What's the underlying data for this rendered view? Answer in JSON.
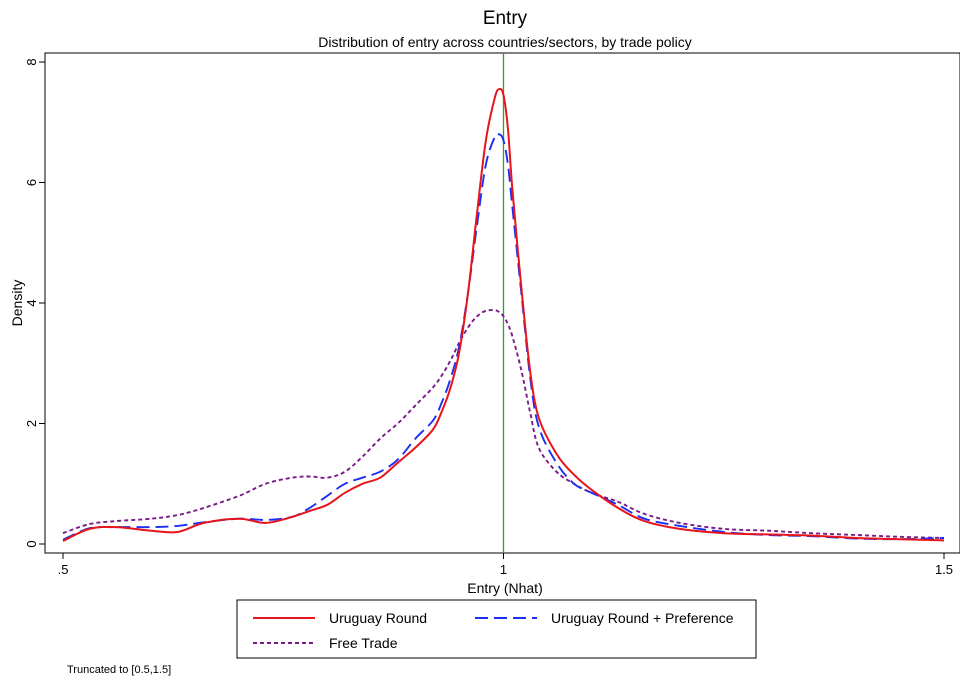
{
  "chart_data": {
    "type": "line",
    "title": "Entry",
    "subtitle": "Distribution of entry across countries/sectors, by trade policy",
    "xlabel": "Entry (Nhat)",
    "ylabel": "Density",
    "xlim": [
      0.5,
      1.5
    ],
    "ylim": [
      0,
      8
    ],
    "x_ticks": [
      0.5,
      1,
      1.5
    ],
    "x_tick_labels": [
      ".5",
      "1",
      "1.5"
    ],
    "y_ticks": [
      0,
      2,
      4,
      6,
      8
    ],
    "y_tick_labels": [
      "0",
      "2",
      "4",
      "6",
      "8"
    ],
    "grid": false,
    "legend_position": "bottom",
    "reference_line": {
      "x": 1,
      "color": "#2ca02c"
    },
    "note": "Truncated to [0.5,1.5]",
    "series": [
      {
        "name": "Uruguay Round",
        "color": "#e8141b",
        "dash": "solid",
        "x": [
          0.5,
          0.53,
          0.56,
          0.6,
          0.63,
          0.66,
          0.7,
          0.73,
          0.76,
          0.78,
          0.8,
          0.82,
          0.84,
          0.86,
          0.88,
          0.9,
          0.92,
          0.93,
          0.94,
          0.95,
          0.96,
          0.97,
          0.98,
          0.99,
          0.995,
          1.0,
          1.005,
          1.01,
          1.02,
          1.03,
          1.04,
          1.06,
          1.08,
          1.1,
          1.13,
          1.16,
          1.2,
          1.25,
          1.3,
          1.35,
          1.4,
          1.45,
          1.5
        ],
        "y": [
          0.05,
          0.25,
          0.28,
          0.22,
          0.2,
          0.35,
          0.42,
          0.35,
          0.45,
          0.55,
          0.65,
          0.85,
          1.0,
          1.1,
          1.35,
          1.6,
          1.9,
          2.2,
          2.6,
          3.2,
          4.2,
          5.5,
          6.7,
          7.4,
          7.55,
          7.45,
          6.9,
          5.9,
          4.3,
          2.9,
          2.1,
          1.5,
          1.15,
          0.9,
          0.6,
          0.38,
          0.25,
          0.18,
          0.16,
          0.14,
          0.1,
          0.08,
          0.06
        ]
      },
      {
        "name": "Uruguay Round + Preference",
        "color": "#1a2ff5",
        "dash": "long-dash",
        "x": [
          0.5,
          0.53,
          0.56,
          0.6,
          0.63,
          0.66,
          0.7,
          0.73,
          0.76,
          0.78,
          0.8,
          0.82,
          0.84,
          0.86,
          0.88,
          0.9,
          0.92,
          0.93,
          0.94,
          0.95,
          0.96,
          0.97,
          0.98,
          0.99,
          0.995,
          1.0,
          1.005,
          1.01,
          1.02,
          1.03,
          1.04,
          1.06,
          1.08,
          1.1,
          1.13,
          1.16,
          1.2,
          1.25,
          1.3,
          1.35,
          1.4,
          1.45,
          1.5
        ],
        "y": [
          0.07,
          0.26,
          0.28,
          0.28,
          0.3,
          0.36,
          0.42,
          0.4,
          0.45,
          0.6,
          0.8,
          1.0,
          1.1,
          1.2,
          1.4,
          1.75,
          2.05,
          2.35,
          2.75,
          3.3,
          4.2,
          5.3,
          6.3,
          6.75,
          6.8,
          6.7,
          6.3,
          5.6,
          4.2,
          2.8,
          1.95,
          1.35,
          1.0,
          0.85,
          0.65,
          0.42,
          0.3,
          0.2,
          0.15,
          0.13,
          0.09,
          0.08,
          0.1
        ]
      },
      {
        "name": "Free Trade",
        "color": "#7b1a8a",
        "dash": "short-dash",
        "x": [
          0.5,
          0.53,
          0.56,
          0.6,
          0.63,
          0.66,
          0.7,
          0.73,
          0.76,
          0.78,
          0.8,
          0.82,
          0.84,
          0.86,
          0.88,
          0.9,
          0.92,
          0.93,
          0.94,
          0.95,
          0.96,
          0.97,
          0.98,
          0.99,
          0.995,
          1.0,
          1.005,
          1.01,
          1.02,
          1.03,
          1.04,
          1.06,
          1.08,
          1.1,
          1.13,
          1.16,
          1.2,
          1.25,
          1.3,
          1.35,
          1.4,
          1.45,
          1.5
        ],
        "y": [
          0.18,
          0.33,
          0.38,
          0.42,
          0.48,
          0.6,
          0.8,
          1.0,
          1.1,
          1.12,
          1.1,
          1.2,
          1.45,
          1.75,
          2.0,
          2.3,
          2.6,
          2.8,
          3.05,
          3.35,
          3.6,
          3.78,
          3.87,
          3.88,
          3.85,
          3.78,
          3.65,
          3.45,
          2.9,
          2.2,
          1.6,
          1.2,
          1.0,
          0.85,
          0.7,
          0.5,
          0.35,
          0.25,
          0.22,
          0.18,
          0.15,
          0.12,
          0.1
        ]
      }
    ]
  }
}
